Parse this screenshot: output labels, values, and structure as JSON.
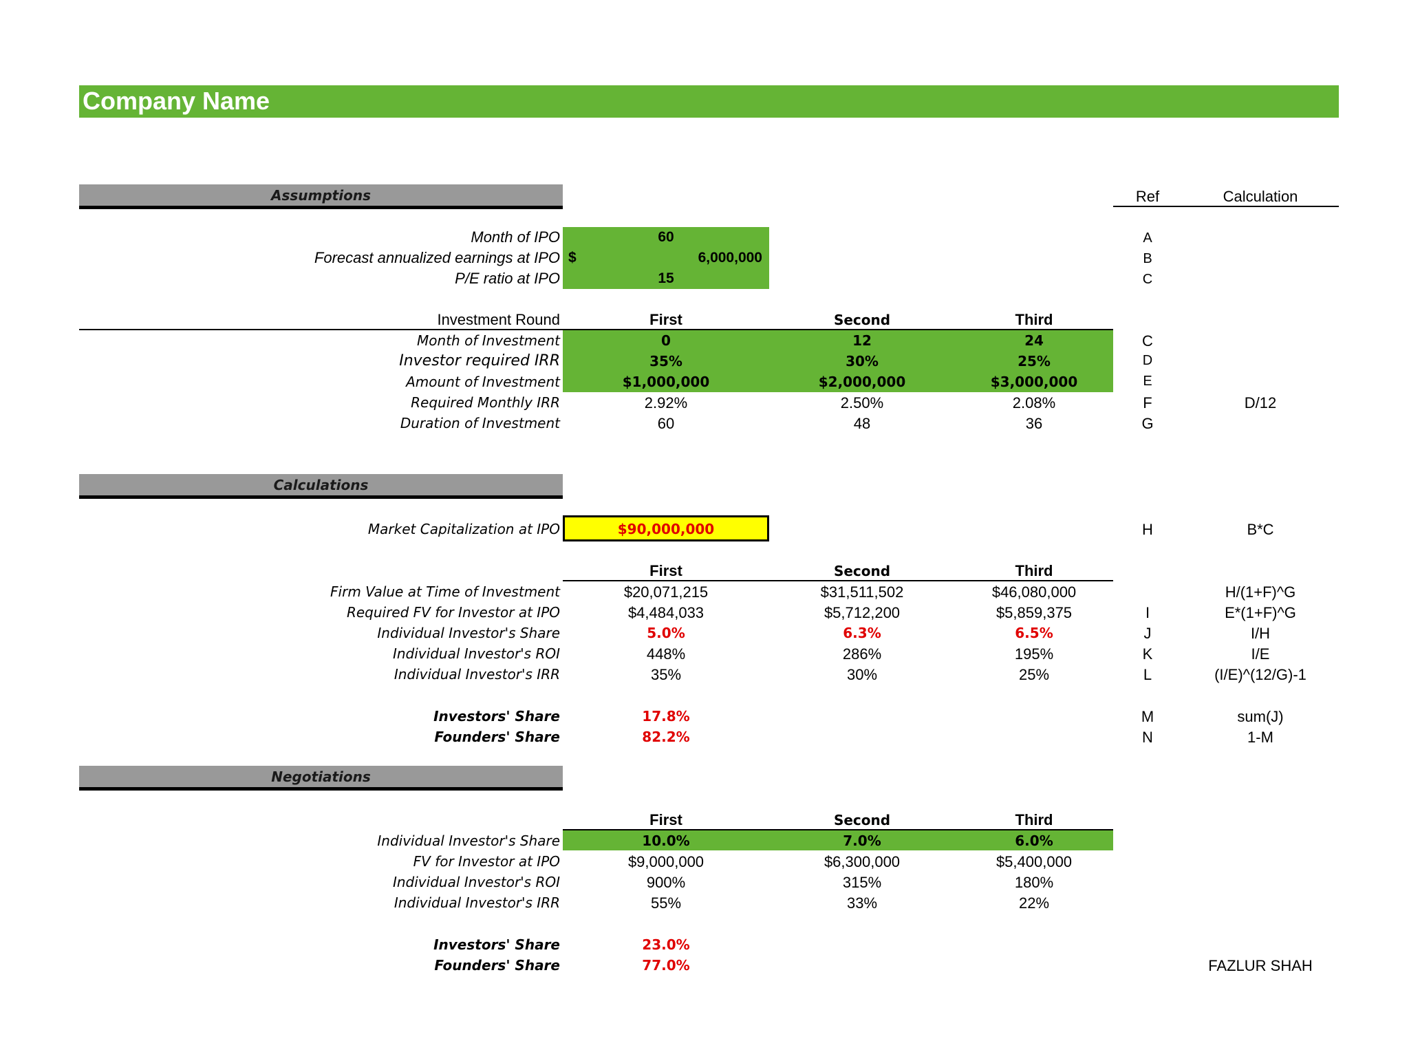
{
  "header": {
    "title": "Company Name"
  },
  "sections": {
    "assumptions": "Assumptions",
    "calculations": "Calculations",
    "negotiations": "Negotiations"
  },
  "ref_header": {
    "ref": "Ref",
    "calculation": "Calculation"
  },
  "assumptions": {
    "month_ipo": {
      "label": "Month of IPO",
      "value": "60",
      "ref": "A"
    },
    "earnings": {
      "label": "Forecast annualized earnings at IPO",
      "currency": "$",
      "value": "6,000,000",
      "ref": "B"
    },
    "pe": {
      "label": "P/E ratio at IPO",
      "value": "15",
      "ref": "C"
    }
  },
  "rounds": {
    "label": "Investment Round",
    "headers": [
      "First",
      "Second",
      "Third"
    ],
    "month": {
      "label": "Month of Investment",
      "values": [
        "0",
        "12",
        "24"
      ],
      "ref": "C"
    },
    "irr": {
      "label": "Investor required IRR",
      "values": [
        "35%",
        "30%",
        "25%"
      ],
      "ref": "D"
    },
    "amount": {
      "label": "Amount of Investment",
      "values": [
        "$1,000,000",
        "$2,000,000",
        "$3,000,000"
      ],
      "ref": "E"
    },
    "monthly_irr": {
      "label": "Required Monthly IRR",
      "values": [
        "2.92%",
        "2.50%",
        "2.08%"
      ],
      "ref": "F",
      "calc": "D/12"
    },
    "duration": {
      "label": "Duration of Investment",
      "values": [
        "60",
        "48",
        "36"
      ],
      "ref": "G"
    }
  },
  "calculations": {
    "market_cap": {
      "label": "Market Capitalization at IPO",
      "value": "$90,000,000",
      "ref": "H",
      "calc": "B*C"
    },
    "headers": [
      "First",
      "Second",
      "Third"
    ],
    "firm_value": {
      "label": "Firm Value at Time of Investment",
      "values": [
        "$20,071,215",
        "$31,511,502",
        "$46,080,000"
      ],
      "calc": "H/(1+F)^G"
    },
    "required_fv": {
      "label": "Required FV for Investor at IPO",
      "values": [
        "$4,484,033",
        "$5,712,200",
        "$5,859,375"
      ],
      "ref": "I",
      "calc": "E*(1+F)^G"
    },
    "share": {
      "label": "Individual Investor's Share",
      "values": [
        "5.0%",
        "6.3%",
        "6.5%"
      ],
      "ref": "J",
      "calc": "I/H"
    },
    "roi": {
      "label": "Individual Investor's ROI",
      "values": [
        "448%",
        "286%",
        "195%"
      ],
      "ref": "K",
      "calc": "I/E"
    },
    "irr": {
      "label": "Individual Investor's IRR",
      "values": [
        "35%",
        "30%",
        "25%"
      ],
      "ref": "L",
      "calc": "(I/E)^(12/G)-1"
    },
    "investors_share": {
      "label": "Investors' Share",
      "value": "17.8%",
      "ref": "M",
      "calc": "sum(J)"
    },
    "founders_share": {
      "label": "Founders' Share",
      "value": "82.2%",
      "ref": "N",
      "calc": "1-M"
    }
  },
  "negotiations": {
    "headers": [
      "First",
      "Second",
      "Third"
    ],
    "share": {
      "label": "Individual Investor's Share",
      "values": [
        "10.0%",
        "7.0%",
        "6.0%"
      ]
    },
    "fv": {
      "label": "FV for Investor at IPO",
      "values": [
        "$9,000,000",
        "$6,300,000",
        "$5,400,000"
      ]
    },
    "roi": {
      "label": "Individual Investor's ROI",
      "values": [
        "900%",
        "315%",
        "180%"
      ]
    },
    "irr": {
      "label": "Individual Investor's IRR",
      "values": [
        "55%",
        "33%",
        "22%"
      ]
    },
    "investors_share": {
      "label": "Investors' Share",
      "value": "23.0%"
    },
    "founders_share": {
      "label": "Founders' Share",
      "value": "77.0%"
    }
  },
  "footer": {
    "author": "FAZLUR SHAH"
  },
  "colors": {
    "green": "#65b435",
    "gray": "#999999",
    "yellow": "#ffff00",
    "red": "#e00000"
  }
}
